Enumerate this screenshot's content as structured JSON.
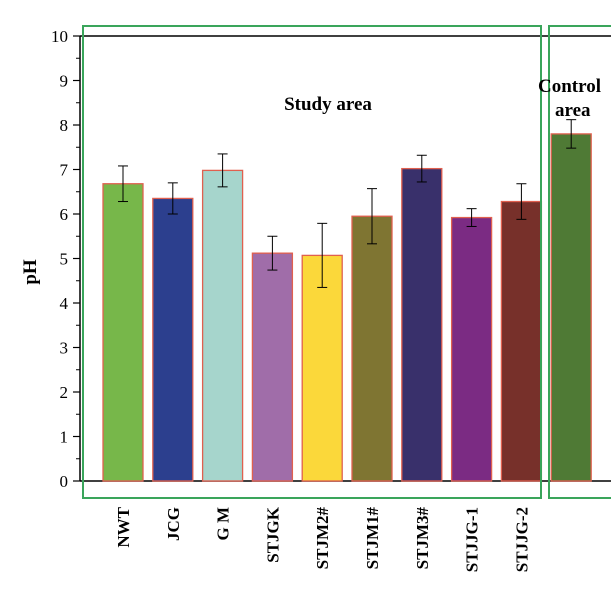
{
  "chart_data": {
    "type": "bar",
    "ylabel": "pH",
    "xlabel": "",
    "ylim": [
      0,
      10
    ],
    "yticks": [
      "0",
      "1",
      "2",
      "3",
      "4",
      "5",
      "6",
      "7",
      "8",
      "9",
      "10"
    ],
    "grid": false,
    "categories": [
      "NWT",
      "JCG",
      "G M",
      "STJGK",
      "STJM2#",
      "STJM1#",
      "STJM3#",
      "STJJG-1",
      "STJJG-2",
      ""
    ],
    "values": [
      6.68,
      6.35,
      6.98,
      5.12,
      5.07,
      5.95,
      7.02,
      5.92,
      6.28,
      7.8
    ],
    "error": [
      0.4,
      0.35,
      0.37,
      0.38,
      0.72,
      0.62,
      0.3,
      0.2,
      0.4,
      0.32
    ],
    "colors": [
      "#77b74a",
      "#2c3f8e",
      "#a6d5cc",
      "#a06da9",
      "#fbd83a",
      "#7f7532",
      "#39306b",
      "#7b2b83",
      "#77302a",
      "#4f7a35"
    ],
    "regions": [
      {
        "label": "Study area",
        "frame_color": "#3aa55b"
      },
      {
        "label_line1": "Control",
        "label_line2": "area",
        "frame_color": "#3aa55b"
      }
    ]
  }
}
